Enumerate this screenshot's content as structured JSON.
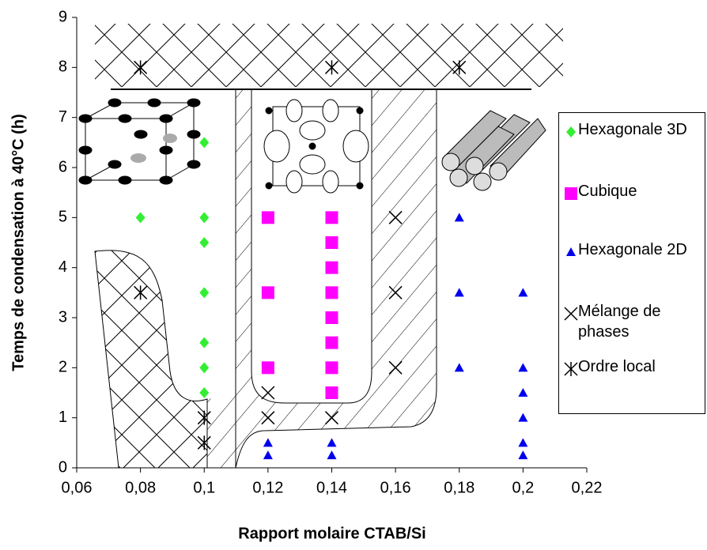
{
  "chart_data": {
    "type": "scatter",
    "x_label": "Rapport molaire CTAB/Si",
    "y_label": "Temps de condensation à 40°C (h)",
    "xlim": [
      0.06,
      0.22
    ],
    "xticks": [
      {
        "value": 0.06,
        "label": "0,06"
      },
      {
        "value": 0.08,
        "label": "0,08"
      },
      {
        "value": 0.1,
        "label": "0,1"
      },
      {
        "value": 0.12,
        "label": "0,12"
      },
      {
        "value": 0.14,
        "label": "0,14"
      },
      {
        "value": 0.16,
        "label": "0,16"
      },
      {
        "value": 0.18,
        "label": "0,18"
      },
      {
        "value": 0.2,
        "label": "0,2"
      },
      {
        "value": 0.22,
        "label": "0,22"
      }
    ],
    "ylim": [
      0,
      9
    ],
    "yticks": [
      0,
      1,
      2,
      3,
      4,
      5,
      6,
      7,
      8,
      9
    ],
    "series": [
      {
        "name": "Hexagonale 3D",
        "marker": "diamond",
        "color": "#33ee33",
        "x": [
          0.08,
          0.1,
          0.1,
          0.1,
          0.1,
          0.1,
          0.1,
          0.1
        ],
        "y": [
          5,
          6.5,
          5,
          4.5,
          3.5,
          2.5,
          2,
          1.5
        ]
      },
      {
        "name": "Cubique",
        "marker": "square",
        "color": "#ff00ff",
        "x": [
          0.12,
          0.12,
          0.12,
          0.14,
          0.14,
          0.14,
          0.14,
          0.14,
          0.14,
          0.14,
          0.14
        ],
        "y": [
          5,
          3.5,
          2,
          5,
          4.5,
          4,
          3.5,
          3,
          2.5,
          2,
          1.5
        ]
      },
      {
        "name": "Hexagonale 2D",
        "marker": "triangle",
        "color": "#0000ee",
        "x": [
          0.18,
          0.18,
          0.18,
          0.2,
          0.2,
          0.2,
          0.2,
          0.2,
          0.2,
          0.12,
          0.12,
          0.14,
          0.14
        ],
        "y": [
          5,
          3.5,
          2,
          3.5,
          2,
          1.5,
          1,
          0.5,
          0.25,
          0.5,
          0.25,
          0.5,
          0.25
        ]
      },
      {
        "name": "Mélange de phases",
        "marker": "x",
        "color": "#000000",
        "x": [
          0.16,
          0.16,
          0.16,
          0.12,
          0.12,
          0.14
        ],
        "y": [
          5,
          3.5,
          2,
          1.5,
          1,
          1
        ]
      },
      {
        "name": "Ordre local",
        "marker": "asterisk",
        "color": "#000000",
        "x": [
          0.08,
          0.14,
          0.18,
          0.08,
          0.1,
          0.1
        ],
        "y": [
          8,
          8,
          8,
          3.5,
          1,
          0.5
        ]
      }
    ]
  }
}
